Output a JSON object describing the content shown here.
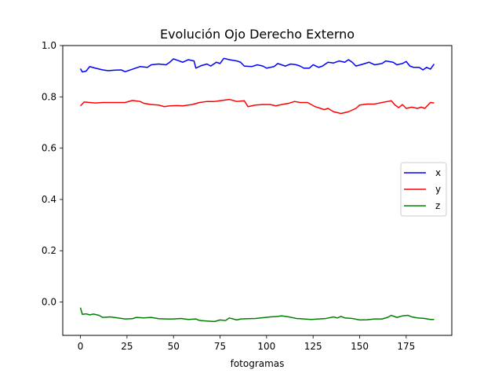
{
  "chart_data": {
    "type": "line",
    "title": "Evolución Ojo Derecho Externo",
    "xlabel": "fotogramas",
    "ylabel": "",
    "xlim": [
      -9.5,
      199.5
    ],
    "ylim": [
      -0.13,
      1.0
    ],
    "xticks": [
      0,
      25,
      50,
      75,
      100,
      125,
      150,
      175
    ],
    "yticks": [
      0.0,
      0.2,
      0.4,
      0.6,
      0.8,
      1.0
    ],
    "xtick_labels": [
      "0",
      "25",
      "50",
      "75",
      "100",
      "125",
      "150",
      "175"
    ],
    "ytick_labels": [
      "0.0",
      "0.2",
      "0.4",
      "0.6",
      "0.8",
      "1.0"
    ],
    "grid": false,
    "legend_position": "center-right",
    "series": [
      {
        "name": "x",
        "color": "#0000ff",
        "points": [
          [
            0,
            0.91
          ],
          [
            1,
            0.897
          ],
          [
            3,
            0.9
          ],
          [
            5,
            0.918
          ],
          [
            8,
            0.912
          ],
          [
            12,
            0.905
          ],
          [
            15,
            0.902
          ],
          [
            18,
            0.904
          ],
          [
            22,
            0.905
          ],
          [
            24,
            0.898
          ],
          [
            28,
            0.908
          ],
          [
            32,
            0.918
          ],
          [
            36,
            0.915
          ],
          [
            38,
            0.925
          ],
          [
            42,
            0.928
          ],
          [
            46,
            0.925
          ],
          [
            48,
            0.935
          ],
          [
            50,
            0.948
          ],
          [
            53,
            0.94
          ],
          [
            55,
            0.935
          ],
          [
            58,
            0.945
          ],
          [
            61,
            0.94
          ],
          [
            62,
            0.912
          ],
          [
            65,
            0.922
          ],
          [
            68,
            0.928
          ],
          [
            70,
            0.92
          ],
          [
            73,
            0.935
          ],
          [
            75,
            0.93
          ],
          [
            77,
            0.95
          ],
          [
            80,
            0.945
          ],
          [
            84,
            0.94
          ],
          [
            86,
            0.935
          ],
          [
            88,
            0.92
          ],
          [
            92,
            0.918
          ],
          [
            95,
            0.925
          ],
          [
            98,
            0.92
          ],
          [
            100,
            0.912
          ],
          [
            104,
            0.918
          ],
          [
            106,
            0.93
          ],
          [
            110,
            0.92
          ],
          [
            113,
            0.928
          ],
          [
            116,
            0.925
          ],
          [
            118,
            0.92
          ],
          [
            120,
            0.912
          ],
          [
            123,
            0.912
          ],
          [
            125,
            0.925
          ],
          [
            128,
            0.915
          ],
          [
            130,
            0.92
          ],
          [
            133,
            0.935
          ],
          [
            136,
            0.932
          ],
          [
            139,
            0.94
          ],
          [
            142,
            0.935
          ],
          [
            144,
            0.945
          ],
          [
            146,
            0.935
          ],
          [
            148,
            0.92
          ],
          [
            152,
            0.928
          ],
          [
            155,
            0.935
          ],
          [
            158,
            0.925
          ],
          [
            162,
            0.93
          ],
          [
            164,
            0.94
          ],
          [
            168,
            0.935
          ],
          [
            170,
            0.925
          ],
          [
            173,
            0.93
          ],
          [
            175,
            0.938
          ],
          [
            177,
            0.92
          ],
          [
            179,
            0.915
          ],
          [
            182,
            0.915
          ],
          [
            184,
            0.905
          ],
          [
            186,
            0.915
          ],
          [
            188,
            0.908
          ],
          [
            190,
            0.928
          ]
        ]
      },
      {
        "name": "y",
        "color": "#ff0000",
        "points": [
          [
            0,
            0.765
          ],
          [
            2,
            0.78
          ],
          [
            5,
            0.778
          ],
          [
            8,
            0.776
          ],
          [
            12,
            0.778
          ],
          [
            16,
            0.778
          ],
          [
            20,
            0.778
          ],
          [
            24,
            0.778
          ],
          [
            28,
            0.786
          ],
          [
            32,
            0.782
          ],
          [
            34,
            0.775
          ],
          [
            38,
            0.77
          ],
          [
            42,
            0.768
          ],
          [
            45,
            0.762
          ],
          [
            48,
            0.765
          ],
          [
            52,
            0.766
          ],
          [
            55,
            0.765
          ],
          [
            60,
            0.77
          ],
          [
            64,
            0.778
          ],
          [
            68,
            0.782
          ],
          [
            72,
            0.782
          ],
          [
            76,
            0.786
          ],
          [
            80,
            0.79
          ],
          [
            84,
            0.782
          ],
          [
            88,
            0.785
          ],
          [
            90,
            0.762
          ],
          [
            94,
            0.768
          ],
          [
            98,
            0.77
          ],
          [
            102,
            0.77
          ],
          [
            105,
            0.765
          ],
          [
            108,
            0.77
          ],
          [
            112,
            0.775
          ],
          [
            115,
            0.782
          ],
          [
            118,
            0.778
          ],
          [
            122,
            0.778
          ],
          [
            124,
            0.77
          ],
          [
            126,
            0.762
          ],
          [
            129,
            0.755
          ],
          [
            131,
            0.75
          ],
          [
            133,
            0.755
          ],
          [
            136,
            0.742
          ],
          [
            140,
            0.735
          ],
          [
            144,
            0.742
          ],
          [
            148,
            0.755
          ],
          [
            150,
            0.768
          ],
          [
            154,
            0.772
          ],
          [
            158,
            0.772
          ],
          [
            162,
            0.778
          ],
          [
            165,
            0.782
          ],
          [
            167,
            0.785
          ],
          [
            169,
            0.768
          ],
          [
            171,
            0.758
          ],
          [
            173,
            0.77
          ],
          [
            175,
            0.755
          ],
          [
            178,
            0.76
          ],
          [
            181,
            0.755
          ],
          [
            183,
            0.76
          ],
          [
            185,
            0.755
          ],
          [
            188,
            0.778
          ],
          [
            190,
            0.776
          ]
        ]
      },
      {
        "name": "z",
        "color": "#008000",
        "points": [
          [
            0,
            -0.022
          ],
          [
            1,
            -0.048
          ],
          [
            3,
            -0.046
          ],
          [
            5,
            -0.05
          ],
          [
            7,
            -0.047
          ],
          [
            10,
            -0.052
          ],
          [
            12,
            -0.06
          ],
          [
            16,
            -0.058
          ],
          [
            20,
            -0.062
          ],
          [
            24,
            -0.066
          ],
          [
            28,
            -0.065
          ],
          [
            30,
            -0.06
          ],
          [
            34,
            -0.062
          ],
          [
            38,
            -0.06
          ],
          [
            42,
            -0.065
          ],
          [
            46,
            -0.066
          ],
          [
            50,
            -0.066
          ],
          [
            54,
            -0.064
          ],
          [
            58,
            -0.068
          ],
          [
            62,
            -0.066
          ],
          [
            64,
            -0.072
          ],
          [
            68,
            -0.074
          ],
          [
            72,
            -0.076
          ],
          [
            75,
            -0.07
          ],
          [
            78,
            -0.072
          ],
          [
            80,
            -0.062
          ],
          [
            84,
            -0.07
          ],
          [
            86,
            -0.066
          ],
          [
            90,
            -0.065
          ],
          [
            94,
            -0.064
          ],
          [
            98,
            -0.061
          ],
          [
            102,
            -0.058
          ],
          [
            106,
            -0.056
          ],
          [
            108,
            -0.054
          ],
          [
            112,
            -0.058
          ],
          [
            116,
            -0.064
          ],
          [
            120,
            -0.066
          ],
          [
            124,
            -0.068
          ],
          [
            128,
            -0.066
          ],
          [
            132,
            -0.064
          ],
          [
            136,
            -0.058
          ],
          [
            138,
            -0.062
          ],
          [
            140,
            -0.056
          ],
          [
            142,
            -0.062
          ],
          [
            146,
            -0.064
          ],
          [
            150,
            -0.07
          ],
          [
            154,
            -0.069
          ],
          [
            158,
            -0.066
          ],
          [
            162,
            -0.066
          ],
          [
            165,
            -0.06
          ],
          [
            167,
            -0.052
          ],
          [
            170,
            -0.06
          ],
          [
            173,
            -0.054
          ],
          [
            176,
            -0.052
          ],
          [
            178,
            -0.058
          ],
          [
            181,
            -0.062
          ],
          [
            185,
            -0.064
          ],
          [
            188,
            -0.068
          ],
          [
            190,
            -0.068
          ]
        ]
      }
    ]
  }
}
